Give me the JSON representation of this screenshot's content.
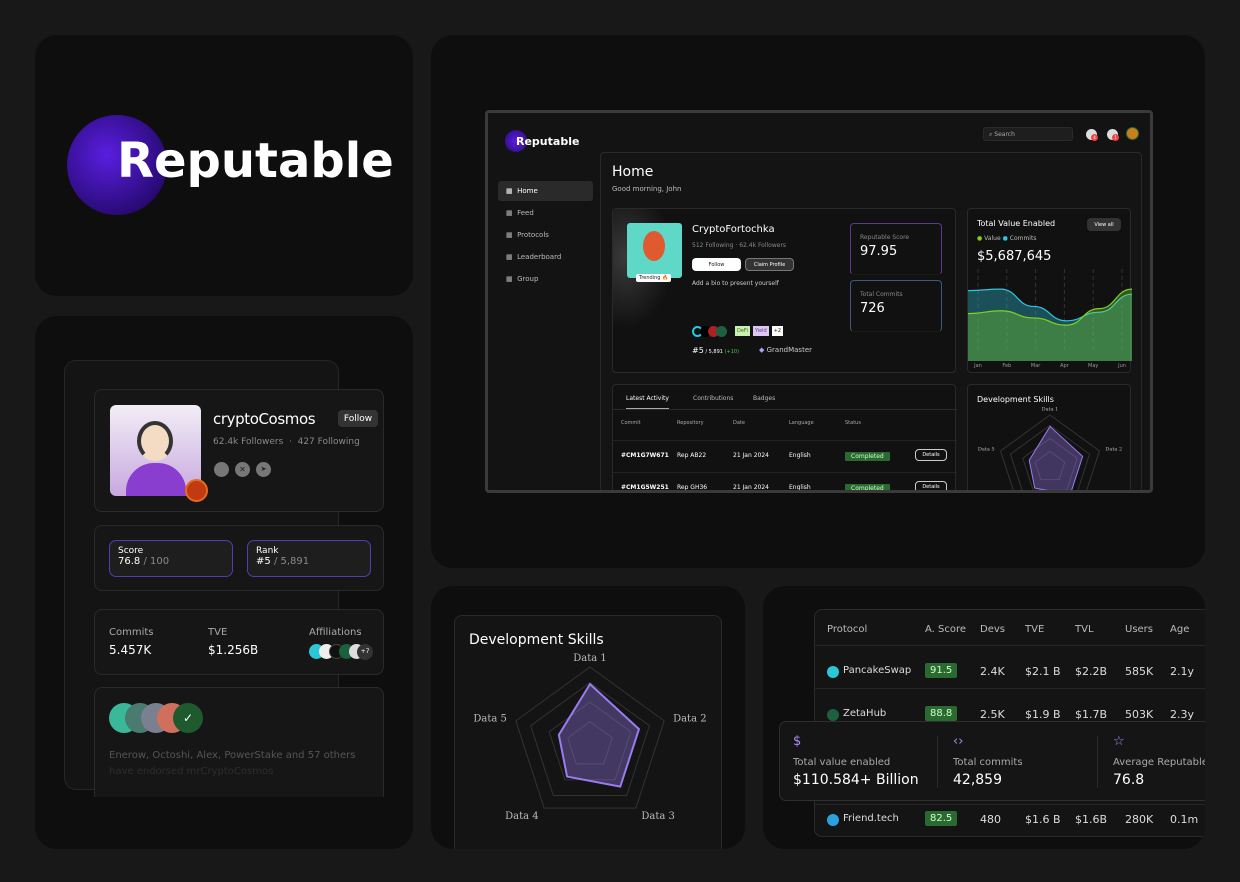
{
  "brand": {
    "name": "Reputable",
    "accent": "#5b1fd6"
  },
  "profile": {
    "name": "cryptoCosmos",
    "follow": "Follow",
    "followers": "62.4k Followers",
    "following": "427 Following",
    "socials": [
      "discord-icon",
      "x-icon",
      "telegram-icon"
    ],
    "score_label": "Score",
    "score": "76.8",
    "score_max": "/ 100",
    "rank_label": "Rank",
    "rank": "#5",
    "rank_max": "/ 5,891",
    "commits_label": "Commits",
    "commits": "5.457K",
    "tve_label": "TVE",
    "tve": "$1.256B",
    "affiliations_label": "Affiliations",
    "affiliations_more": "+7",
    "endorse_text": "Enerow, Octoshi, Alex, PowerStake and 57 others",
    "endorse_text2": "have endorsed mrCryptoCosmos"
  },
  "dashboard": {
    "logo": "Reputable",
    "search_placeholder": "Search",
    "notif_count": "4",
    "msg_count": "1",
    "nav": [
      {
        "label": "Home",
        "icon": "grid-icon",
        "active": true
      },
      {
        "label": "Feed",
        "icon": "rss-icon"
      },
      {
        "label": "Protocols",
        "icon": "copy-icon"
      },
      {
        "label": "Leaderboard",
        "icon": "globe-icon"
      },
      {
        "label": "Group",
        "icon": "users-icon"
      }
    ],
    "title": "Home",
    "greeting": "Good morning, John",
    "user": {
      "name": "CryptoFortochka",
      "following": "512 Following",
      "followers": "62.4k Followers",
      "follow": "Follow",
      "claim": "Claim Profile",
      "bio": "Add a bio to present yourself",
      "trending": "Trending 🔥",
      "tags": [
        "DeFi",
        "Yield",
        "+2"
      ],
      "rank": "#5",
      "rank_total": "/ 5,891",
      "rank_change": "(+10)",
      "level": "GrandMaster"
    },
    "score_label": "Reputable Score",
    "score": "97.95",
    "commits_label": "Total Commits",
    "commits": "726",
    "tve": {
      "title": "Total Value Enabled",
      "view_all": "View all",
      "legend": [
        "Value",
        "Commits"
      ],
      "amount": "$5,687,645"
    },
    "tabs": [
      "Latest Activity",
      "Contributions",
      "Badges"
    ],
    "table": {
      "headers": [
        "Commit",
        "Repository",
        "Date",
        "Language",
        "Status"
      ],
      "rows": [
        [
          "#CM1G7W671",
          "Rep AB22",
          "21 Jan 2024",
          "English",
          "Completed"
        ],
        [
          "#CM1G5W251",
          "Rep GH36",
          "21 Jan 2024",
          "English",
          "Completed"
        ]
      ],
      "details": "Details"
    },
    "skills_title": "Development Skills"
  },
  "chart_data": [
    {
      "type": "area",
      "title": "Total Value Enabled",
      "categories": [
        "Jan",
        "Feb",
        "Mar",
        "Apr",
        "May",
        "Jun"
      ],
      "series": [
        {
          "name": "Value",
          "color": "#7ed321",
          "values": [
            38,
            42,
            32,
            22,
            45,
            72
          ]
        },
        {
          "name": "Commits",
          "color": "#2ec5e0",
          "values": [
            70,
            72,
            48,
            28,
            40,
            65
          ]
        }
      ],
      "ylim": [
        0,
        100
      ],
      "grid": "vertical-dashed"
    },
    {
      "type": "radar",
      "title": "Development Skills",
      "categories": [
        "Data 1",
        "Data 2",
        "Data 3",
        "Data 4",
        "Data 5"
      ],
      "values": [
        0.78,
        0.66,
        0.66,
        0.5,
        0.42
      ],
      "color": "#9b7bf0",
      "ylim": [
        0,
        1
      ]
    }
  ],
  "protocols": {
    "headers": [
      "Protocol",
      "A. Score",
      "Devs",
      "TVE",
      "TVL",
      "Users",
      "Age"
    ],
    "rows": [
      [
        "PancakeSwap",
        "91.5",
        "2.4K",
        "$2.1 B",
        "$2.2B",
        "585K",
        "2.1y"
      ],
      [
        "ZetaHub",
        "88.8",
        "2.5K",
        "$1.9 B",
        "$1.7B",
        "503K",
        "2.3y"
      ],
      [
        "Friend.tech",
        "82.5",
        "480",
        "$1.6 B",
        "$1.6B",
        "280K",
        "0.1m"
      ]
    ]
  },
  "stats": [
    {
      "icon": "dollar-icon",
      "label": "Total value enabled",
      "value": "$110.584+ Billion"
    },
    {
      "icon": "code-icon",
      "label": "Total commits",
      "value": "42,859"
    },
    {
      "icon": "star-icon",
      "label": "Average Reputable score",
      "value": "76.8"
    }
  ]
}
